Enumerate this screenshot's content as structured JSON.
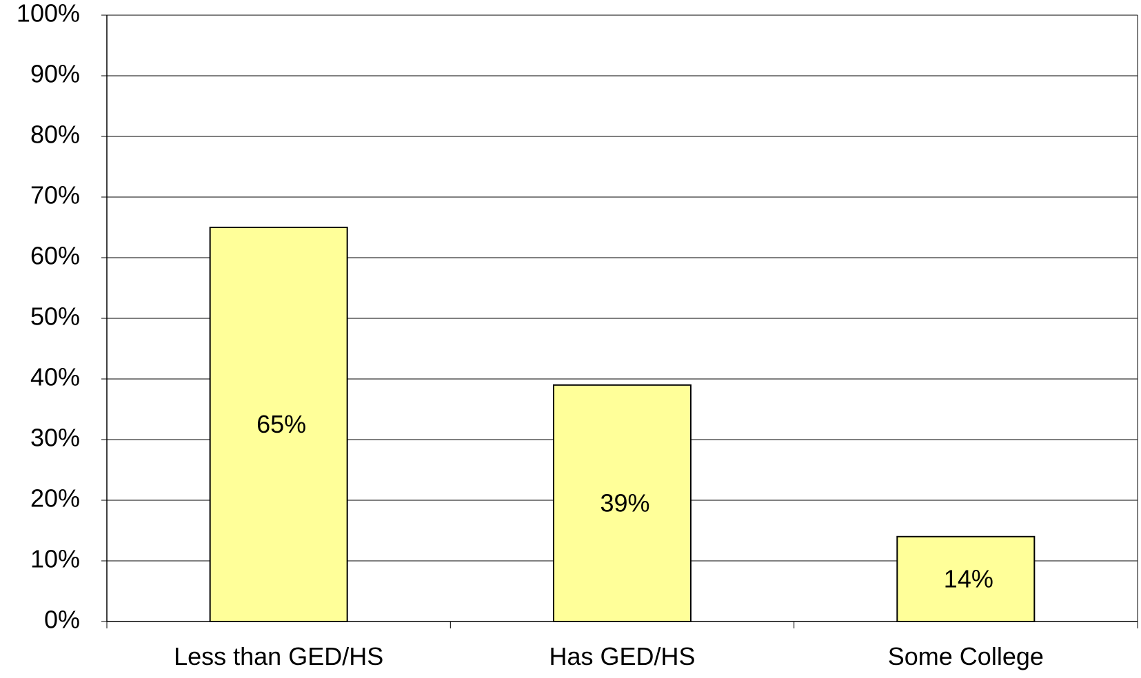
{
  "chart_data": {
    "type": "bar",
    "title": "",
    "xlabel": "",
    "ylabel": "",
    "categories": [
      "Less than GED/HS",
      "Has GED/HS",
      "Some College"
    ],
    "values": [
      65,
      39,
      14
    ],
    "data_labels": [
      "65%",
      "39%",
      "14%"
    ],
    "ylim": [
      0,
      100
    ],
    "y_ticks": [
      0,
      10,
      20,
      30,
      40,
      50,
      60,
      70,
      80,
      90,
      100
    ],
    "y_tick_labels": [
      "0%",
      "10%",
      "20%",
      "30%",
      "40%",
      "50%",
      "60%",
      "70%",
      "80%",
      "90%",
      "100%"
    ],
    "grid": true,
    "legend": "none",
    "colors": {
      "bar_fill": "#ffff99",
      "bar_stroke": "#000000",
      "grid": "#000000",
      "axis": "#000000"
    }
  }
}
